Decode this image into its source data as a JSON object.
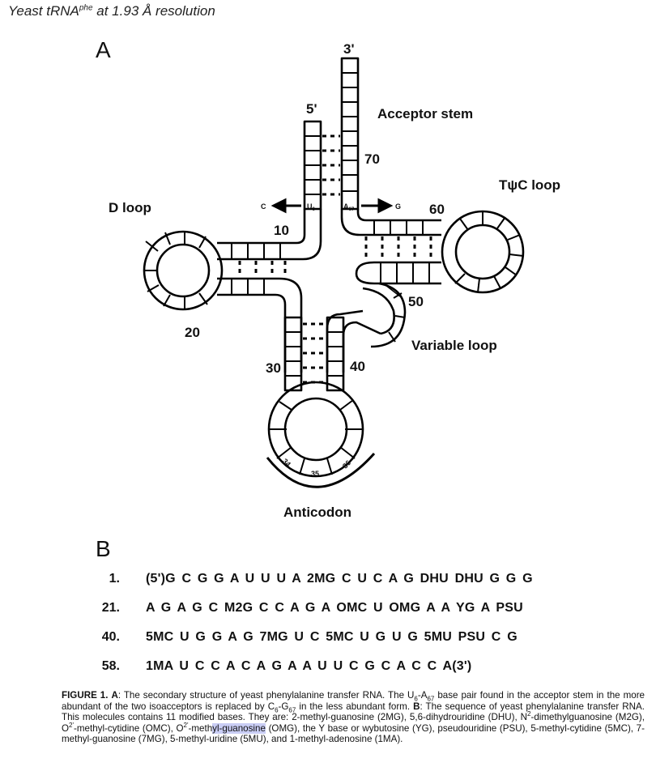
{
  "header": {
    "title_pre": "Yeast tRNA",
    "title_sup": "phe",
    "title_post": " at 1.93 Å resolution"
  },
  "panel_a": {
    "letter": "A",
    "labels": {
      "three_prime": "3'",
      "five_prime": "5'",
      "acceptor_stem": "Acceptor stem",
      "n70": "70",
      "tpc_loop": "TψC loop",
      "d_loop": "D loop",
      "c_arrow": "C",
      "u6": "U",
      "u6_sub": "6",
      "a67": "A",
      "a67_sub": "67",
      "g_arrow": "G",
      "n60": "60",
      "n10": "10",
      "n50": "50",
      "n20": "20",
      "variable_loop": "Variable loop",
      "n30": "30",
      "n40": "40",
      "n34": "34",
      "n35": "35",
      "n36": "36",
      "anticodon": "Anticodon"
    }
  },
  "panel_b": {
    "letter": "B",
    "rows": [
      {
        "num": "1.",
        "seq": "(5')G C G G A U U U A 2MG C U C A G DHU DHU G G G"
      },
      {
        "num": "21.",
        "seq": "A G A G C M2G C C A G A OMC U OMG A A YG A PSU"
      },
      {
        "num": "40.",
        "seq": "5MC U G G A G 7MG U C 5MC U G U G 5MU PSU C G"
      },
      {
        "num": "58.",
        "seq": "1MA U C C A C A G A A U U C G C A C C A(3')"
      }
    ]
  },
  "caption": {
    "fig": "FIGURE 1.",
    "a_label": "A",
    "a_text_1": ": The secondary structure of yeast phenylalanine transfer RNA. The U",
    "sub6": "6",
    "dash_a": "-A",
    "sub67": "67",
    "a_text_2": " base pair found in the acceptor stem in the more abundant of the two isoacceptors is replaced by C",
    "sub6b": "6",
    "dash_g": "-G",
    "sub67b": "67",
    "a_text_3": " in the less abundant form. ",
    "b_label": "B",
    "b_text_1": ": The sequence of yeast phenylalanine transfer RNA. This molecules contains 11 modified bases. They are: 2-methyl-guanosine (2MG), 5,6-dihydrouridine (DHU), N",
    "sup2": "2",
    "b_text_2": "-dimethylguanosine (M2G), O",
    "sup2p": "2'",
    "b_text_3": "-methyl-cytidine (OMC), O",
    "sup2p_b": "2'",
    "b_text_4": "-meth",
    "b_hl": "yl-guanosine",
    "b_text_5": " (OMG), the Y base or wybutosine (YG), pseudouridine (PSU), 5-methyl-cytidine (5MC), 7-methyl-guanosine (7MG), 5-methyl-uridine (5MU), and 1-methyl-adenosine (1MA)."
  }
}
